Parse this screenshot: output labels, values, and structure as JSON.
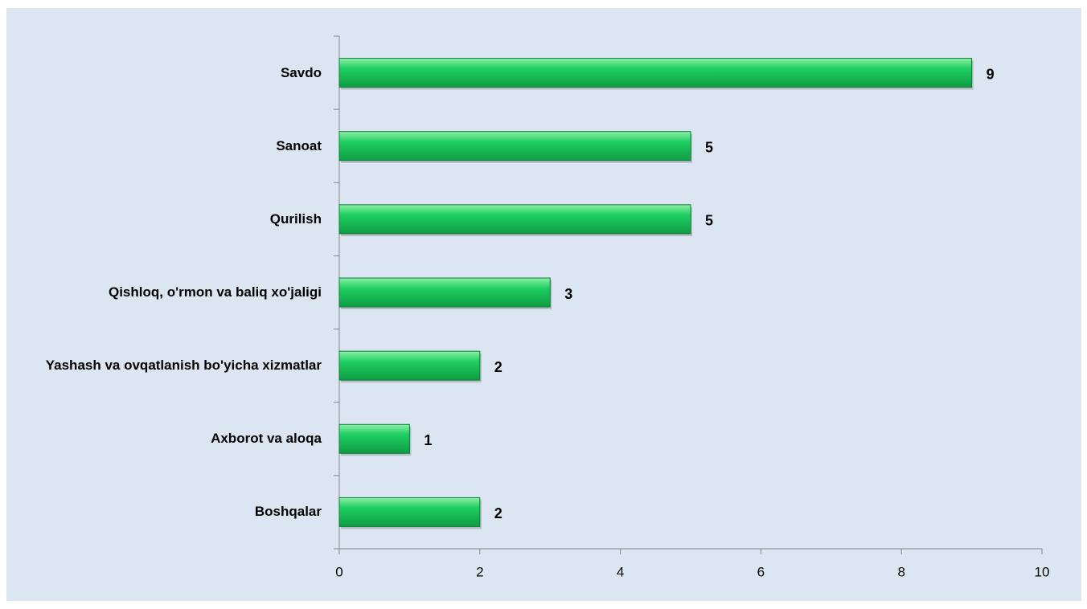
{
  "chart_data": {
    "type": "bar",
    "orientation": "horizontal",
    "categories": [
      "Savdo",
      "Sanoat",
      "Qurilish",
      "Qishloq, o'rmon va baliq xo'jaligi",
      "Yashash va ovqatlanish bo'yicha xizmatlar",
      "Axborot va aloqa",
      "Boshqalar"
    ],
    "values": [
      9,
      5,
      5,
      3,
      2,
      1,
      2
    ],
    "color": "#17c45a",
    "xlim": [
      0,
      10
    ],
    "xticks": [
      0,
      2,
      4,
      6,
      8,
      10
    ],
    "grid": false
  }
}
